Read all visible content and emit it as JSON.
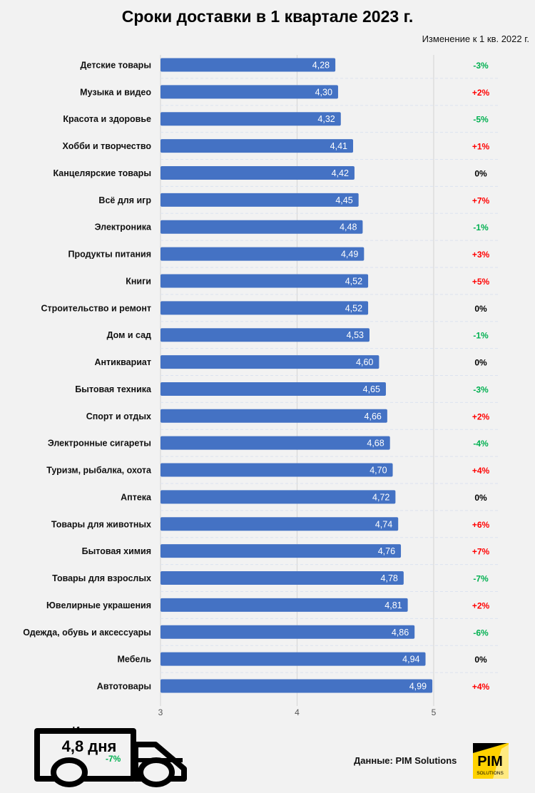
{
  "chart_data": {
    "type": "bar",
    "orientation": "horizontal",
    "title": "Сроки доставки в 1 квартале 2023 г.",
    "change_header": "Изменение к 1 кв. 2022 г.",
    "categories": [
      "Детские товары",
      "Музыка и видео",
      "Красота и здоровье",
      "Хобби и творчество",
      "Канцелярские товары",
      "Всё для игр",
      "Электроника",
      "Продукты питания",
      "Книги",
      "Строительство и ремонт",
      "Дом и сад",
      "Антиквариат",
      "Бытовая техника",
      "Спорт и отдых",
      "Электронные сигареты",
      "Туризм, рыбалка, охота",
      "Аптека",
      "Товары для животных",
      "Бытовая химия",
      "Товары для взрослых",
      "Ювелирные украшения",
      "Одежда, обувь и аксессуары",
      "Мебель",
      "Автотовары"
    ],
    "values": [
      4.28,
      4.3,
      4.32,
      4.41,
      4.42,
      4.45,
      4.48,
      4.49,
      4.52,
      4.52,
      4.53,
      4.6,
      4.65,
      4.66,
      4.68,
      4.7,
      4.72,
      4.74,
      4.76,
      4.78,
      4.81,
      4.86,
      4.94,
      4.99
    ],
    "value_labels": [
      "4,28",
      "4,30",
      "4,32",
      "4,41",
      "4,42",
      "4,45",
      "4,48",
      "4,49",
      "4,52",
      "4,52",
      "4,53",
      "4,60",
      "4,65",
      "4,66",
      "4,68",
      "4,70",
      "4,72",
      "4,74",
      "4,76",
      "4,78",
      "4,81",
      "4,86",
      "4,94",
      "4,99"
    ],
    "changes": [
      "-3%",
      "+2%",
      "-5%",
      "+1%",
      "0%",
      "+7%",
      "-1%",
      "+3%",
      "+5%",
      "0%",
      "-1%",
      "0%",
      "-3%",
      "+2%",
      "-4%",
      "+4%",
      "0%",
      "+6%",
      "+7%",
      "-7%",
      "+2%",
      "-6%",
      "0%",
      "+4%"
    ],
    "xlim": [
      3,
      5.2
    ],
    "x_ticks": [
      "3",
      "4",
      "5"
    ],
    "grid": true,
    "colors": {
      "bar": "#4472c4",
      "negative": "#00b050",
      "positive": "#ff0000",
      "zero": "#000000"
    }
  },
  "summary": {
    "label": "Итого:",
    "value": "4,8 дня",
    "change": "-7%"
  },
  "source": "Данные: PIM Solutions",
  "logo": {
    "text": "PIM",
    "subtext": "SOLUTIONS"
  }
}
